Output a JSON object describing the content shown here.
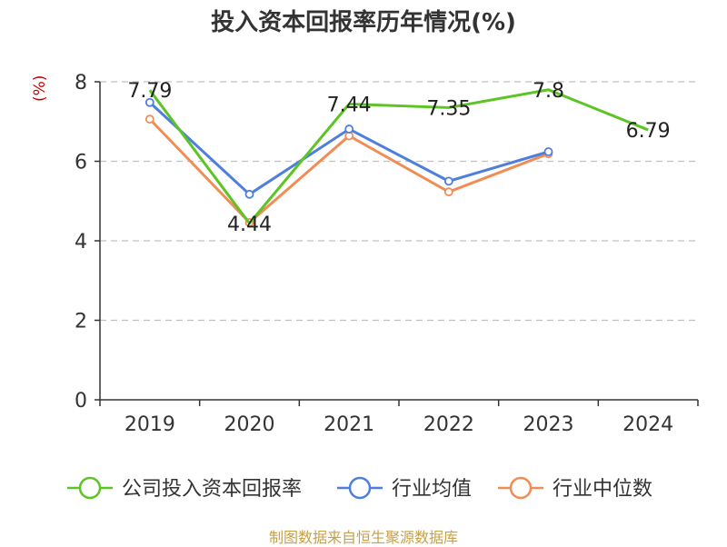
{
  "title": "投入资本回报率历年情况(%)",
  "unit_label": "(%)",
  "source": "制图数据来自恒生聚源数据库",
  "colors": {
    "company": "#5cc424",
    "avg": "#4e7fde",
    "median": "#f28c55",
    "unit": "#cc0000",
    "source": "#c8a048",
    "grid": "#c0c0c0",
    "axis": "#333333"
  },
  "chart_data": {
    "type": "line",
    "categories": [
      "2019",
      "2020",
      "2021",
      "2022",
      "2023",
      "2024"
    ],
    "ylim": [
      0,
      8
    ],
    "yticks": [
      0,
      2,
      4,
      6,
      8
    ],
    "grid": true,
    "legend_position": "bottom",
    "series": [
      {
        "name": "公司投入资本回报率",
        "key": "company",
        "values": [
          7.79,
          4.44,
          7.44,
          7.35,
          7.8,
          6.79
        ],
        "labels": [
          "7.79",
          "4.44",
          "7.44",
          "7.35",
          "7.8",
          "6.79"
        ],
        "show_labels": true
      },
      {
        "name": "行业均值",
        "key": "avg",
        "values": [
          7.48,
          5.17,
          6.81,
          5.5,
          6.24,
          null
        ],
        "show_labels": false
      },
      {
        "name": "行业中位数",
        "key": "median",
        "values": [
          7.06,
          4.46,
          6.64,
          5.23,
          6.19,
          null
        ],
        "show_labels": false
      }
    ]
  }
}
